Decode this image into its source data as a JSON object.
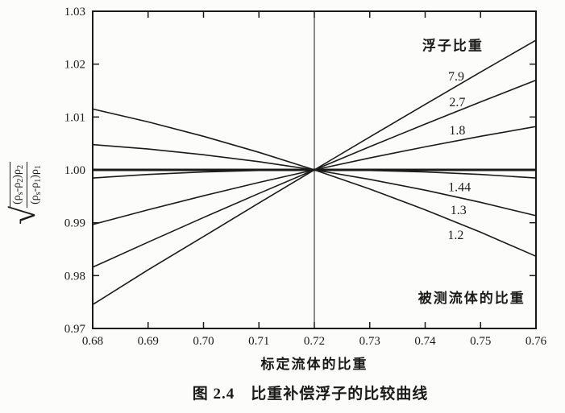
{
  "chart_data": {
    "type": "line",
    "title": "",
    "xlabel": "标定流体的比重",
    "ylabel": "√[(ρs-ρ2)ρ2/((ρs-ρ1)ρ1)]",
    "ylabel_formula": {
      "radical": "√",
      "numerator_parts": [
        {
          "t": "(ρ"
        },
        {
          "t": "s",
          "sub": true
        },
        {
          "t": "-ρ"
        },
        {
          "t": "2",
          "sub": true
        },
        {
          "t": ")ρ"
        },
        {
          "t": "2",
          "sub": true
        }
      ],
      "denominator_parts": [
        {
          "t": "(ρ"
        },
        {
          "t": "s",
          "sub": true
        },
        {
          "t": "-ρ"
        },
        {
          "t": "1",
          "sub": true
        },
        {
          "t": ")ρ"
        },
        {
          "t": "1",
          "sub": true
        }
      ]
    },
    "xlim": [
      0.68,
      0.76
    ],
    "ylim": [
      0.97,
      1.03
    ],
    "xticks": [
      0.68,
      0.69,
      0.7,
      0.71,
      0.72,
      0.73,
      0.74,
      0.75,
      0.76
    ],
    "xtick_labels": [
      "0.68",
      "0.69",
      "0.70",
      "0.71",
      "0.72",
      "0.73",
      "0.74",
      "0.75",
      "0.76"
    ],
    "yticks": [
      1.03,
      1.02,
      1.01,
      1.0,
      0.99,
      0.98,
      0.97
    ],
    "ytick_labels": [
      "1.03",
      "1.02",
      "1.01",
      "1.00",
      "0.99",
      "0.98",
      "0.97"
    ],
    "grid": false,
    "x": [
      0.68,
      0.69,
      0.7,
      0.71,
      0.72,
      0.73,
      0.74,
      0.75,
      0.76
    ],
    "series": [
      {
        "name": "7.9",
        "label_pos": {
          "x": 0.7456,
          "y": 1.0177
        },
        "values": [
          0.97453,
          0.98109,
          0.98739,
          0.99372,
          1.0,
          1.00622,
          1.01238,
          1.01849,
          1.02454
        ]
      },
      {
        "name": "2.7",
        "label_pos": {
          "x": 0.7458,
          "y": 1.0128
        },
        "values": [
          0.98159,
          0.98633,
          0.99098,
          0.99554,
          1.0,
          1.00437,
          1.00866,
          1.01286,
          1.01697
        ]
      },
      {
        "name": "1.8",
        "label_pos": {
          "x": 0.7458,
          "y": 1.0075
        },
        "values": [
          0.98966,
          0.99245,
          0.9951,
          0.99762,
          1.0,
          1.00225,
          1.00436,
          1.00635,
          1.0082
        ]
      },
      {
        "name": "1.44",
        "label_pos": {
          "x": 0.7462,
          "y": 0.9967
        },
        "values": [
          0.99846,
          0.99913,
          0.99961,
          0.9999,
          1.0,
          0.9999,
          0.99961,
          0.99913,
          0.99846
        ]
      },
      {
        "name": "1.3",
        "label_pos": {
          "x": 0.746,
          "y": 0.9924
        },
        "values": [
          1.00478,
          1.00394,
          1.00287,
          1.00155,
          1.0,
          0.9982,
          0.99616,
          0.99387,
          0.99134
        ]
      },
      {
        "name": "1.2",
        "label_pos": {
          "x": 0.7455,
          "y": 0.9877
        },
        "values": [
          1.01151,
          1.00907,
          1.00635,
          1.00332,
          1.0,
          0.99638,
          0.99245,
          0.98821,
          0.98366
        ]
      }
    ],
    "reference_lines": {
      "horizontal_y": 1.0,
      "vertical_x": 0.72
    },
    "legend_title": {
      "text": "浮子比重",
      "x": 0.745,
      "y": 1.0235
    },
    "xaxis_annotation": {
      "text": "被测流体的比重",
      "x": 0.7484,
      "y": 0.9758
    },
    "caption": "图 2.4　比重补偿浮子的比较曲线",
    "ink_color": "#1a1a18",
    "background": "#fcfcfa",
    "legend_position": "upper right annotations on curves"
  }
}
